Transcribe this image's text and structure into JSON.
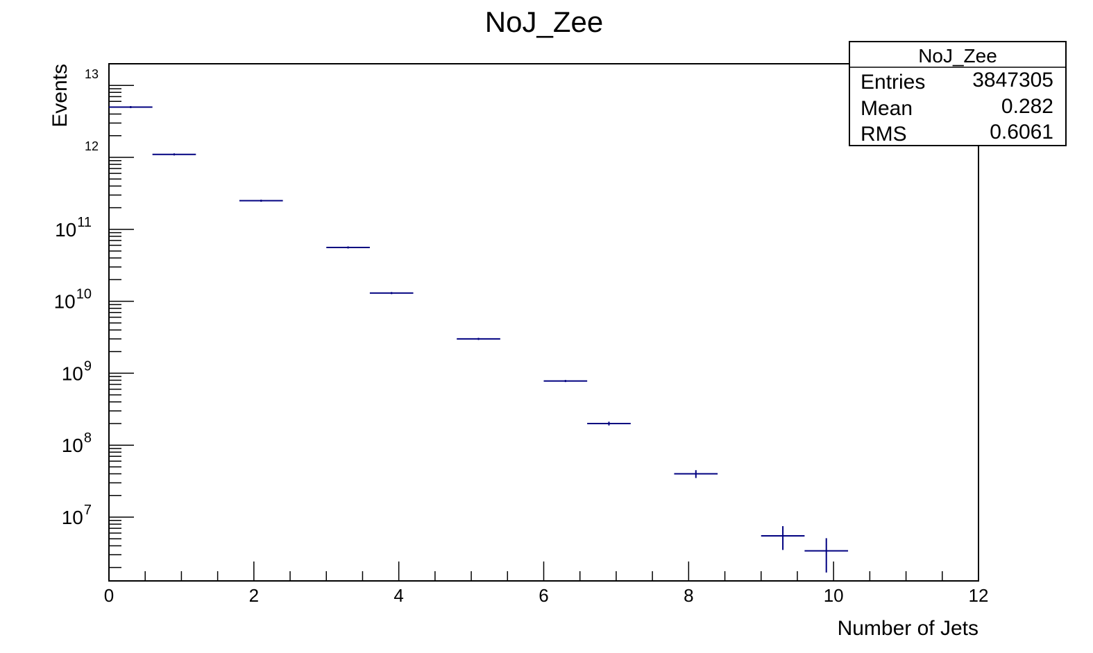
{
  "chart_data": {
    "type": "histogram",
    "title": "NoJ_Zee",
    "xlabel": "Number of Jets",
    "ylabel": "Events",
    "xlim": [
      0,
      12
    ],
    "ylim": [
      1300000.0,
      20000000000000.0
    ],
    "log_y": true,
    "grid": false,
    "x_ticks": [
      "0",
      "2",
      "4",
      "6",
      "8",
      "10",
      "12"
    ],
    "y_ticks": [
      {
        "base": "10",
        "exp": "7",
        "value": 10000000.0
      },
      {
        "base": "10",
        "exp": "8",
        "value": 100000000.0
      },
      {
        "base": "10",
        "exp": "9",
        "value": 1000000000.0
      },
      {
        "base": "10",
        "exp": "10",
        "value": 10000000000.0
      },
      {
        "base": "10",
        "exp": "11",
        "value": 100000000000.0
      },
      {
        "base": "",
        "exp": "12",
        "value": 1000000000000.0
      },
      {
        "base": "",
        "exp": "13",
        "value": 10000000000000.0
      }
    ],
    "series": [
      {
        "color": "#000080",
        "points": [
          {
            "x": 0.3,
            "xlo": 0.0,
            "xhi": 0.6,
            "y": 5000000000000.0,
            "ylo": 5000000000000.0,
            "yhi": 5000000000000.0
          },
          {
            "x": 0.9,
            "xlo": 0.6,
            "xhi": 1.2,
            "y": 1100000000000.0,
            "ylo": 1100000000000.0,
            "yhi": 1100000000000.0
          },
          {
            "x": 2.1,
            "xlo": 1.8,
            "xhi": 2.4,
            "y": 250000000000.0,
            "ylo": 250000000000.0,
            "yhi": 250000000000.0
          },
          {
            "x": 3.3,
            "xlo": 3.0,
            "xhi": 3.6,
            "y": 56000000000.0,
            "ylo": 56000000000.0,
            "yhi": 56000000000.0
          },
          {
            "x": 3.9,
            "xlo": 3.6,
            "xhi": 4.2,
            "y": 13000000000.0,
            "ylo": 13000000000.0,
            "yhi": 13000000000.0
          },
          {
            "x": 5.1,
            "xlo": 4.8,
            "xhi": 5.4,
            "y": 3000000000.0,
            "ylo": 2950000000.0,
            "yhi": 3050000000.0
          },
          {
            "x": 6.3,
            "xlo": 6.0,
            "xhi": 6.6,
            "y": 780000000.0,
            "ylo": 760000000.0,
            "yhi": 800000000.0
          },
          {
            "x": 6.9,
            "xlo": 6.6,
            "xhi": 7.2,
            "y": 200000000.0,
            "ylo": 188000000.0,
            "yhi": 212000000.0
          },
          {
            "x": 8.1,
            "xlo": 7.8,
            "xhi": 8.4,
            "y": 40000000.0,
            "ylo": 35000000.0,
            "yhi": 45000000.0
          },
          {
            "x": 9.3,
            "xlo": 9.0,
            "xhi": 9.6,
            "y": 5500000.0,
            "ylo": 3500000.0,
            "yhi": 7500000.0
          },
          {
            "x": 9.9,
            "xlo": 9.6,
            "xhi": 10.2,
            "y": 3400000.0,
            "ylo": 1700000.0,
            "yhi": 5100000.0
          }
        ]
      }
    ],
    "stats_box": {
      "title": "NoJ_Zee",
      "rows": [
        {
          "label": "Entries",
          "value": "3847305"
        },
        {
          "label": "Mean",
          "value": "0.282"
        },
        {
          "label": "RMS",
          "value": "0.6061"
        }
      ],
      "placement": "top-right"
    }
  }
}
